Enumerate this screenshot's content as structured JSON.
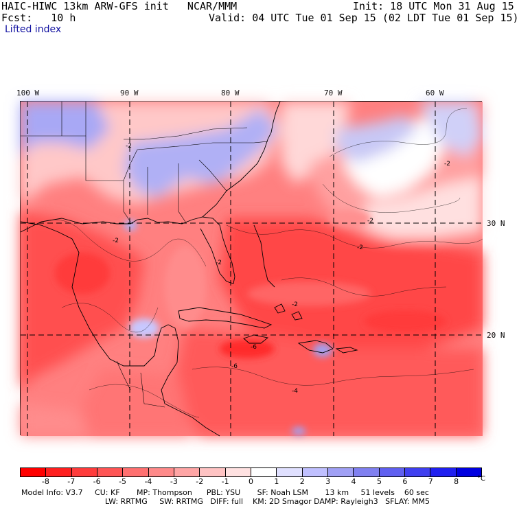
{
  "header": {
    "model_line": "HAIC-HIWC 13km ARW-GFS init   NCAR/MMM",
    "forecast_line": "Fcst:   10 h",
    "init_line": "Init: 18 UTC Mon 31 Aug 15",
    "valid_line": "Valid: 04 UTC Tue 01 Sep 15 (02 LDT Tue 01 Sep 15)",
    "field_name": "Lifted index"
  },
  "map": {
    "longitude_labels": [
      "100 W",
      "90 W",
      "80 W",
      "70 W",
      "60 W"
    ],
    "latitude_labels": [
      "30 N",
      "20 N"
    ],
    "contour_labels": [
      "-2",
      "-2",
      "-2",
      "-2",
      "-2",
      "-2",
      "-4",
      "-6",
      "-6",
      "-2"
    ],
    "field_colors": {
      "strong_negative": "#ff3333",
      "moderate_negative": "#ff6b6b",
      "weak_negative": "#ffb3b3",
      "neutral": "#ffffff",
      "weak_positive": "#c8c8ff",
      "moderate_positive": "#8c8cf0"
    }
  },
  "colorbar": {
    "unit": "°C",
    "tick_labels": [
      "-8",
      "-7",
      "-6",
      "-5",
      "-4",
      "-3",
      "-2",
      "-1",
      "0",
      "1",
      "2",
      "3",
      "4",
      "5",
      "6",
      "7",
      "8"
    ],
    "colors": [
      "#ff0000",
      "#ff2020",
      "#ff3c3c",
      "#ff5555",
      "#ff7070",
      "#ff8a8a",
      "#ffa5a5",
      "#ffc3c3",
      "#ffe1e1",
      "#ffffff",
      "#e0e0ff",
      "#c0c0ff",
      "#a0a0f5",
      "#8080f0",
      "#6060f0",
      "#4040f0",
      "#2020f0",
      "#0000e0"
    ]
  },
  "model_info": {
    "line1": "Model Info: V3.7     CU: KF       MP: Thompson      PBL: YSU       SF: Noah LSM       13 km     51 levels    60 sec",
    "line2": "LW: RRTMG     SW: RRTMG   DIFF: full    KM: 2D Smagor DAMP: Rayleigh3   SFLAY: MM5"
  }
}
